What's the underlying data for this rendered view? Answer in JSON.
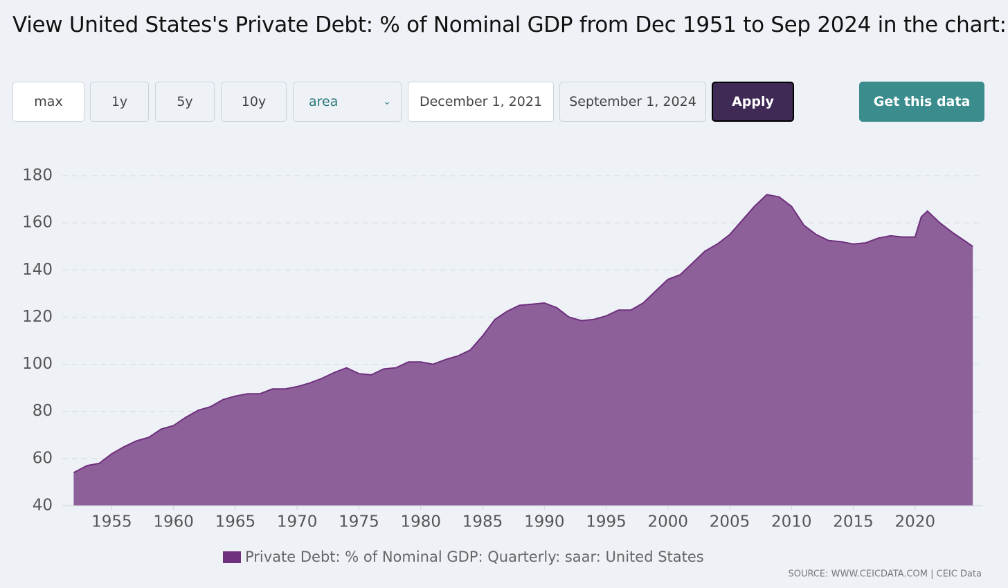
{
  "page_title": "View United States's Private Debt: % of Nominal GDP from Dec 1951 to Sep 2024 in the chart:",
  "controls": {
    "ranges": [
      "max",
      "1y",
      "5y",
      "10y"
    ],
    "chart_type": "area",
    "date_from": "December 1, 2021",
    "date_to": "September 1, 2024",
    "apply": "Apply",
    "get_data": "Get this data"
  },
  "chart_data": {
    "type": "area",
    "x": [
      1951.92,
      1953,
      1954,
      1955,
      1956,
      1957,
      1958,
      1959,
      1960,
      1961,
      1962,
      1963,
      1964,
      1965,
      1966,
      1967,
      1968,
      1969,
      1970,
      1971,
      1972,
      1973,
      1974,
      1975,
      1976,
      1977,
      1978,
      1979,
      1980,
      1981,
      1982,
      1983,
      1984,
      1985,
      1986,
      1987,
      1988,
      1989,
      1990,
      1991,
      1992,
      1993,
      1994,
      1995,
      1996,
      1997,
      1998,
      1999,
      2000,
      2001,
      2002,
      2003,
      2004,
      2005,
      2006,
      2007,
      2008,
      2009,
      2010,
      2011,
      2012,
      2013,
      2014,
      2015,
      2016,
      2017,
      2018,
      2019,
      2020,
      2020.5,
      2021,
      2022,
      2023,
      2024.67
    ],
    "series": [
      {
        "name": "Private Debt: % of Nominal GDP: Quarterly: saar: United States",
        "color": "#6e2f7d",
        "fill": "#8e6099",
        "values": [
          54,
          57,
          58,
          62,
          65,
          67.5,
          69,
          72.5,
          74,
          77.5,
          80.5,
          82,
          85,
          86.5,
          87.5,
          87.5,
          89.5,
          89.5,
          90.5,
          92,
          94,
          96.5,
          98.5,
          96,
          95.5,
          98,
          98.5,
          101,
          101,
          100,
          102,
          103.5,
          106,
          112,
          119,
          122.5,
          125,
          125.5,
          126,
          124,
          120,
          118.5,
          119,
          120.5,
          123,
          123,
          126,
          131,
          136,
          138,
          143,
          148,
          151,
          155,
          161,
          167,
          172,
          171,
          167,
          159,
          155,
          152.5,
          152,
          151,
          151.5,
          153.5,
          154.5,
          154,
          154,
          162.5,
          165,
          160,
          156,
          150
        ]
      }
    ],
    "xlim": [
      1951,
      2025.5
    ],
    "ylim": [
      40,
      180
    ],
    "xticks": [
      1955,
      1960,
      1965,
      1970,
      1975,
      1980,
      1985,
      1990,
      1995,
      2000,
      2005,
      2010,
      2015,
      2020
    ],
    "yticks": [
      40,
      60,
      80,
      100,
      120,
      140,
      160,
      180
    ],
    "grid": true,
    "legend": "bottom",
    "source": "SOURCE: WWW.CEICDATA.COM | CEIC Data"
  }
}
